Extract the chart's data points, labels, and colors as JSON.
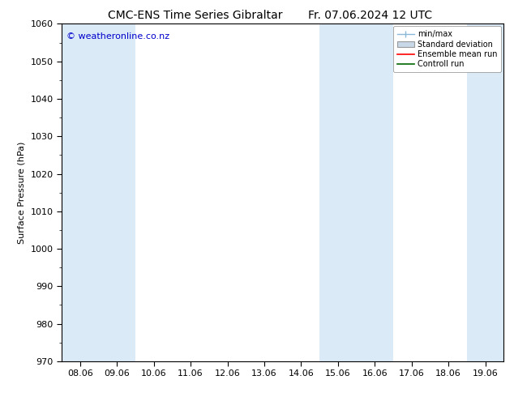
{
  "title_left": "CMC-ENS Time Series Gibraltar",
  "title_right": "Fr. 07.06.2024 12 UTC",
  "ylabel": "Surface Pressure (hPa)",
  "ylim": [
    970,
    1060
  ],
  "yticks": [
    970,
    980,
    990,
    1000,
    1010,
    1020,
    1030,
    1040,
    1050,
    1060
  ],
  "xtick_labels": [
    "08.06",
    "09.06",
    "10.06",
    "11.06",
    "12.06",
    "13.06",
    "14.06",
    "15.06",
    "16.06",
    "17.06",
    "18.06",
    "19.06"
  ],
  "watermark": "© weatheronline.co.nz",
  "watermark_color": "#0000cc",
  "bg_color": "#ffffff",
  "plot_bg_color": "#ffffff",
  "shaded_bands": [
    {
      "xstart": 0.0,
      "xend": 1.0,
      "color": "#daeaf7"
    },
    {
      "xstart": 1.0,
      "xend": 2.0,
      "color": "#daeaf7"
    },
    {
      "xstart": 7.0,
      "xend": 8.0,
      "color": "#daeaf7"
    },
    {
      "xstart": 8.0,
      "xend": 9.0,
      "color": "#daeaf7"
    },
    {
      "xstart": 11.0,
      "xend": 12.0,
      "color": "#daeaf7"
    }
  ],
  "legend_labels": [
    "min/max",
    "Standard deviation",
    "Ensemble mean run",
    "Controll run"
  ],
  "minmax_line_color": "#8ab8d8",
  "std_fill_color": "#c8d8e8",
  "ensemble_mean_color": "#ff0000",
  "control_run_color": "#006600",
  "num_points": 12,
  "xmin": 0,
  "xmax": 11,
  "title_fontsize": 10,
  "label_fontsize": 8,
  "tick_fontsize": 8
}
